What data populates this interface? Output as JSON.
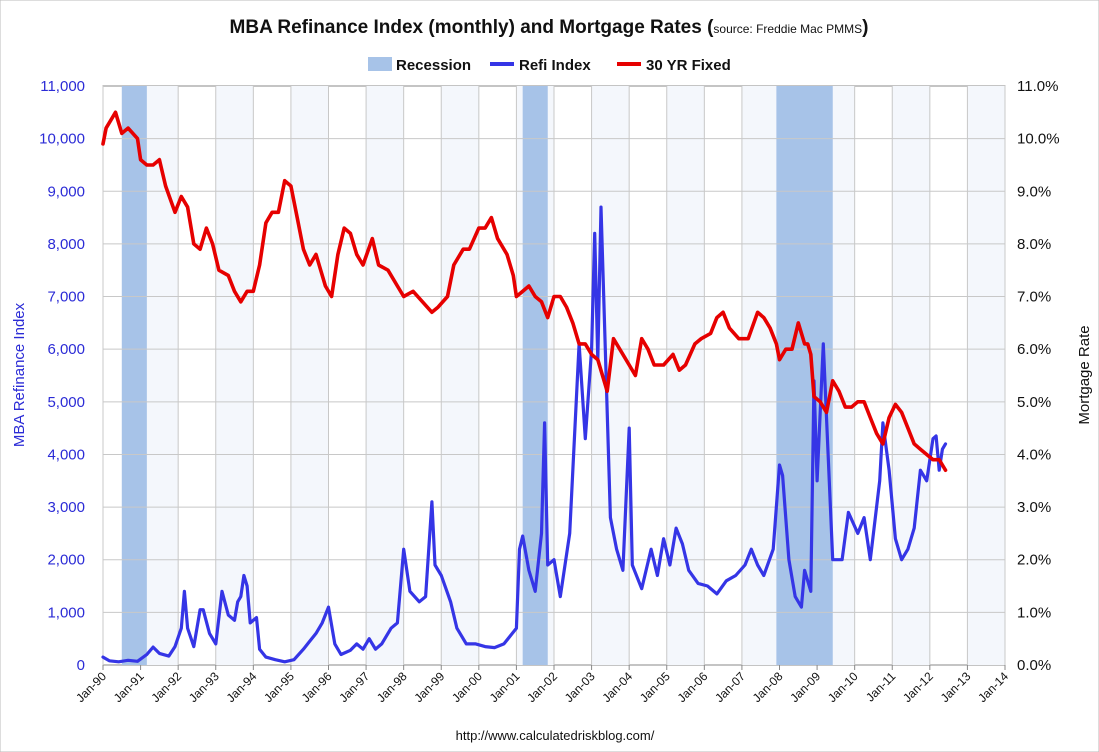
{
  "chart_data": {
    "type": "line",
    "title": "MBA Refinance Index (monthly) and Mortgage Rates",
    "subtitle": "source: Freddie Mac PMMS",
    "ylabel": "MBA Refinance Index",
    "y2label": "Mortgage Rate",
    "ylim": [
      0,
      11000
    ],
    "y2lim": [
      0,
      11
    ],
    "xlim": [
      "1990-01",
      "2014-01"
    ],
    "grid": true,
    "legend_position": "top",
    "legend": [
      "Recession",
      "Refi Index",
      "30 YR Fixed"
    ],
    "yticks": [
      "0",
      "1,000",
      "2,000",
      "3,000",
      "4,000",
      "5,000",
      "6,000",
      "7,000",
      "8,000",
      "9,000",
      "10,000",
      "11,000"
    ],
    "y2ticks": [
      "0.0%",
      "1.0%",
      "2.0%",
      "3.0%",
      "4.0%",
      "5.0%",
      "6.0%",
      "7.0%",
      "8.0%",
      "9.0%",
      "10.0%",
      "11.0%"
    ],
    "xticks": [
      "Jan-90",
      "Jan-91",
      "Jan-92",
      "Jan-93",
      "Jan-94",
      "Jan-95",
      "Jan-96",
      "Jan-97",
      "Jan-98",
      "Jan-99",
      "Jan-00",
      "Jan-01",
      "Jan-02",
      "Jan-03",
      "Jan-04",
      "Jan-05",
      "Jan-06",
      "Jan-07",
      "Jan-08",
      "Jan-09",
      "Jan-10",
      "Jan-11",
      "Jan-12",
      "Jan-13",
      "Jan-14"
    ],
    "recessions": [
      {
        "start": "1990-07",
        "end": "1991-03"
      },
      {
        "start": "2001-03",
        "end": "2001-11"
      },
      {
        "start": "2007-12",
        "end": "2009-06"
      }
    ],
    "series": [
      {
        "name": "Refi Index",
        "axis": "left",
        "color": "#3535e6",
        "points": [
          [
            "1990-01",
            150
          ],
          [
            "1990-03",
            80
          ],
          [
            "1990-06",
            60
          ],
          [
            "1990-09",
            90
          ],
          [
            "1990-12",
            70
          ],
          [
            "1991-03",
            200
          ],
          [
            "1991-05",
            340
          ],
          [
            "1991-07",
            220
          ],
          [
            "1991-10",
            170
          ],
          [
            "1991-12",
            350
          ],
          [
            "1992-02",
            700
          ],
          [
            "1992-03",
            1400
          ],
          [
            "1992-04",
            700
          ],
          [
            "1992-06",
            350
          ],
          [
            "1992-08",
            1050
          ],
          [
            "1992-09",
            1050
          ],
          [
            "1992-11",
            600
          ],
          [
            "1993-01",
            400
          ],
          [
            "1993-03",
            1400
          ],
          [
            "1993-05",
            950
          ],
          [
            "1993-07",
            850
          ],
          [
            "1993-08",
            1200
          ],
          [
            "1993-09",
            1300
          ],
          [
            "1993-10",
            1700
          ],
          [
            "1993-11",
            1500
          ],
          [
            "1993-12",
            800
          ],
          [
            "1994-02",
            900
          ],
          [
            "1994-03",
            300
          ],
          [
            "1994-05",
            150
          ],
          [
            "1994-08",
            100
          ],
          [
            "1994-11",
            60
          ],
          [
            "1995-02",
            100
          ],
          [
            "1995-05",
            300
          ],
          [
            "1995-07",
            450
          ],
          [
            "1995-09",
            600
          ],
          [
            "1995-11",
            800
          ],
          [
            "1996-01",
            1100
          ],
          [
            "1996-03",
            400
          ],
          [
            "1996-05",
            200
          ],
          [
            "1996-08",
            280
          ],
          [
            "1996-10",
            400
          ],
          [
            "1996-12",
            300
          ],
          [
            "1997-02",
            500
          ],
          [
            "1997-04",
            300
          ],
          [
            "1997-06",
            400
          ],
          [
            "1997-09",
            700
          ],
          [
            "1997-11",
            800
          ],
          [
            "1998-01",
            2200
          ],
          [
            "1998-03",
            1400
          ],
          [
            "1998-06",
            1200
          ],
          [
            "1998-08",
            1300
          ],
          [
            "1998-10",
            3100
          ],
          [
            "1998-11",
            1900
          ],
          [
            "1999-01",
            1700
          ],
          [
            "1999-04",
            1200
          ],
          [
            "1999-06",
            700
          ],
          [
            "1999-09",
            400
          ],
          [
            "1999-12",
            400
          ],
          [
            "2000-03",
            350
          ],
          [
            "2000-06",
            330
          ],
          [
            "2000-09",
            400
          ],
          [
            "2001-01",
            700
          ],
          [
            "2001-02",
            2200
          ],
          [
            "2001-03",
            2450
          ],
          [
            "2001-05",
            1800
          ],
          [
            "2001-07",
            1400
          ],
          [
            "2001-09",
            2500
          ],
          [
            "2001-10",
            4600
          ],
          [
            "2001-11",
            1900
          ],
          [
            "2002-01",
            2000
          ],
          [
            "2002-03",
            1300
          ],
          [
            "2002-06",
            2500
          ],
          [
            "2002-09",
            6100
          ],
          [
            "2002-11",
            4300
          ],
          [
            "2003-01",
            6000
          ],
          [
            "2003-02",
            8200
          ],
          [
            "2003-03",
            5800
          ],
          [
            "2003-04",
            8700
          ],
          [
            "2003-07",
            2800
          ],
          [
            "2003-09",
            2200
          ],
          [
            "2003-11",
            1800
          ],
          [
            "2004-01",
            4500
          ],
          [
            "2004-02",
            1900
          ],
          [
            "2004-05",
            1450
          ],
          [
            "2004-08",
            2200
          ],
          [
            "2004-10",
            1700
          ],
          [
            "2004-12",
            2400
          ],
          [
            "2005-02",
            1900
          ],
          [
            "2005-04",
            2600
          ],
          [
            "2005-06",
            2300
          ],
          [
            "2005-08",
            1800
          ],
          [
            "2005-11",
            1550
          ],
          [
            "2006-02",
            1500
          ],
          [
            "2006-05",
            1350
          ],
          [
            "2006-08",
            1600
          ],
          [
            "2006-11",
            1700
          ],
          [
            "2007-02",
            1900
          ],
          [
            "2007-04",
            2200
          ],
          [
            "2007-06",
            1900
          ],
          [
            "2007-08",
            1700
          ],
          [
            "2007-11",
            2200
          ],
          [
            "2008-01",
            3800
          ],
          [
            "2008-02",
            3600
          ],
          [
            "2008-04",
            2000
          ],
          [
            "2008-06",
            1300
          ],
          [
            "2008-08",
            1100
          ],
          [
            "2008-09",
            1800
          ],
          [
            "2008-11",
            1400
          ],
          [
            "2008-12",
            5400
          ],
          [
            "2009-01",
            3500
          ],
          [
            "2009-03",
            6100
          ],
          [
            "2009-06",
            2000
          ],
          [
            "2009-09",
            2000
          ],
          [
            "2009-11",
            2900
          ],
          [
            "2010-02",
            2500
          ],
          [
            "2010-04",
            2800
          ],
          [
            "2010-06",
            2000
          ],
          [
            "2010-09",
            3500
          ],
          [
            "2010-10",
            4600
          ],
          [
            "2010-12",
            3700
          ],
          [
            "2011-02",
            2400
          ],
          [
            "2011-04",
            2000
          ],
          [
            "2011-06",
            2200
          ],
          [
            "2011-08",
            2600
          ],
          [
            "2011-10",
            3700
          ],
          [
            "2011-12",
            3500
          ],
          [
            "2012-02",
            4300
          ],
          [
            "2012-03",
            4350
          ],
          [
            "2012-04",
            3700
          ],
          [
            "2012-05",
            4100
          ],
          [
            "2012-06",
            4200
          ]
        ]
      },
      {
        "name": "30 YR Fixed",
        "axis": "right",
        "color": "#e60000",
        "points": [
          [
            "1990-01",
            9.9
          ],
          [
            "1990-02",
            10.2
          ],
          [
            "1990-04",
            10.4
          ],
          [
            "1990-05",
            10.5
          ],
          [
            "1990-07",
            10.1
          ],
          [
            "1990-09",
            10.2
          ],
          [
            "1990-12",
            10.0
          ],
          [
            "1991-01",
            9.6
          ],
          [
            "1991-03",
            9.5
          ],
          [
            "1991-05",
            9.5
          ],
          [
            "1991-07",
            9.6
          ],
          [
            "1991-09",
            9.1
          ],
          [
            "1991-12",
            8.6
          ],
          [
            "1992-02",
            8.9
          ],
          [
            "1992-04",
            8.7
          ],
          [
            "1992-06",
            8.0
          ],
          [
            "1992-08",
            7.9
          ],
          [
            "1992-10",
            8.3
          ],
          [
            "1992-12",
            8.0
          ],
          [
            "1993-02",
            7.5
          ],
          [
            "1993-05",
            7.4
          ],
          [
            "1993-07",
            7.1
          ],
          [
            "1993-09",
            6.9
          ],
          [
            "1993-11",
            7.1
          ],
          [
            "1994-01",
            7.1
          ],
          [
            "1994-03",
            7.6
          ],
          [
            "1994-05",
            8.4
          ],
          [
            "1994-07",
            8.6
          ],
          [
            "1994-09",
            8.6
          ],
          [
            "1994-11",
            9.2
          ],
          [
            "1995-01",
            9.1
          ],
          [
            "1995-03",
            8.5
          ],
          [
            "1995-05",
            7.9
          ],
          [
            "1995-07",
            7.6
          ],
          [
            "1995-09",
            7.8
          ],
          [
            "1995-12",
            7.2
          ],
          [
            "1996-02",
            7.0
          ],
          [
            "1996-04",
            7.8
          ],
          [
            "1996-06",
            8.3
          ],
          [
            "1996-08",
            8.2
          ],
          [
            "1996-10",
            7.8
          ],
          [
            "1996-12",
            7.6
          ],
          [
            "1997-03",
            8.1
          ],
          [
            "1997-05",
            7.6
          ],
          [
            "1997-08",
            7.5
          ],
          [
            "1997-11",
            7.2
          ],
          [
            "1998-01",
            7.0
          ],
          [
            "1998-04",
            7.1
          ],
          [
            "1998-07",
            6.9
          ],
          [
            "1998-10",
            6.7
          ],
          [
            "1998-12",
            6.8
          ],
          [
            "1999-03",
            7.0
          ],
          [
            "1999-05",
            7.6
          ],
          [
            "1999-08",
            7.9
          ],
          [
            "1999-10",
            7.9
          ],
          [
            "2000-01",
            8.3
          ],
          [
            "2000-03",
            8.3
          ],
          [
            "2000-05",
            8.5
          ],
          [
            "2000-07",
            8.1
          ],
          [
            "2000-10",
            7.8
          ],
          [
            "2000-12",
            7.4
          ],
          [
            "2001-01",
            7.0
          ],
          [
            "2001-03",
            7.1
          ],
          [
            "2001-05",
            7.2
          ],
          [
            "2001-07",
            7.0
          ],
          [
            "2001-09",
            6.9
          ],
          [
            "2001-11",
            6.6
          ],
          [
            "2002-01",
            7.0
          ],
          [
            "2002-03",
            7.0
          ],
          [
            "2002-05",
            6.8
          ],
          [
            "2002-07",
            6.5
          ],
          [
            "2002-09",
            6.1
          ],
          [
            "2002-11",
            6.1
          ],
          [
            "2003-01",
            5.9
          ],
          [
            "2003-03",
            5.8
          ],
          [
            "2003-06",
            5.2
          ],
          [
            "2003-08",
            6.2
          ],
          [
            "2003-11",
            5.9
          ],
          [
            "2004-01",
            5.7
          ],
          [
            "2004-03",
            5.5
          ],
          [
            "2004-05",
            6.2
          ],
          [
            "2004-07",
            6.0
          ],
          [
            "2004-09",
            5.7
          ],
          [
            "2004-12",
            5.7
          ],
          [
            "2005-03",
            5.9
          ],
          [
            "2005-05",
            5.6
          ],
          [
            "2005-07",
            5.7
          ],
          [
            "2005-10",
            6.1
          ],
          [
            "2005-12",
            6.2
          ],
          [
            "2006-03",
            6.3
          ],
          [
            "2006-05",
            6.6
          ],
          [
            "2006-07",
            6.7
          ],
          [
            "2006-09",
            6.4
          ],
          [
            "2006-12",
            6.2
          ],
          [
            "2007-03",
            6.2
          ],
          [
            "2007-06",
            6.7
          ],
          [
            "2007-08",
            6.6
          ],
          [
            "2007-10",
            6.4
          ],
          [
            "2007-12",
            6.1
          ],
          [
            "2008-01",
            5.8
          ],
          [
            "2008-03",
            6.0
          ],
          [
            "2008-05",
            6.0
          ],
          [
            "2008-07",
            6.5
          ],
          [
            "2008-09",
            6.1
          ],
          [
            "2008-10",
            6.1
          ],
          [
            "2008-11",
            5.9
          ],
          [
            "2008-12",
            5.1
          ],
          [
            "2009-02",
            5.0
          ],
          [
            "2009-04",
            4.8
          ],
          [
            "2009-06",
            5.4
          ],
          [
            "2009-08",
            5.2
          ],
          [
            "2009-10",
            4.9
          ],
          [
            "2009-12",
            4.9
          ],
          [
            "2010-02",
            5.0
          ],
          [
            "2010-04",
            5.0
          ],
          [
            "2010-06",
            4.7
          ],
          [
            "2010-08",
            4.4
          ],
          [
            "2010-10",
            4.2
          ],
          [
            "2010-12",
            4.7
          ],
          [
            "2011-02",
            4.95
          ],
          [
            "2011-04",
            4.8
          ],
          [
            "2011-06",
            4.5
          ],
          [
            "2011-08",
            4.2
          ],
          [
            "2011-10",
            4.1
          ],
          [
            "2011-12",
            4.0
          ],
          [
            "2012-02",
            3.9
          ],
          [
            "2012-03",
            3.9
          ],
          [
            "2012-04",
            3.9
          ],
          [
            "2012-05",
            3.8
          ],
          [
            "2012-06",
            3.7
          ]
        ]
      }
    ]
  },
  "footer": {
    "url": "http://www.calculatedriskblog.com/"
  }
}
